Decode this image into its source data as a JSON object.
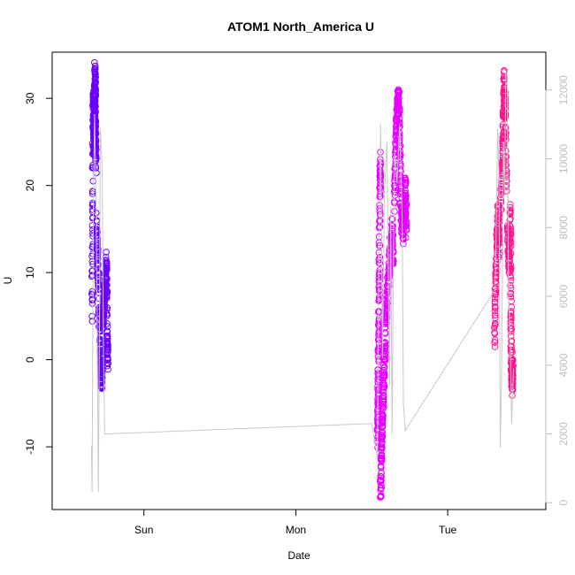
{
  "chart_data": {
    "type": "scatter",
    "title": "ATOM1 North_America U",
    "xlabel": "Date",
    "ylabel": "U",
    "x_axis_type": "time",
    "x_range_hours": [
      -14.5,
      63.5
    ],
    "x_ticks": [
      {
        "label": "Sun",
        "hours": 0
      },
      {
        "label": "Mon",
        "hours": 24
      },
      {
        "label": "Tue",
        "hours": 48
      }
    ],
    "ylim": [
      -17.2,
      35.3
    ],
    "y_ticks": [
      -10,
      0,
      10,
      20,
      30
    ],
    "y2lim": [
      -200,
      13100
    ],
    "y2_ticks": [
      0,
      2000,
      4000,
      6000,
      8000,
      10000,
      12000
    ],
    "grid": false,
    "legend": "none",
    "colors": {
      "group1": "#6b00ff",
      "group2": "#e600ff",
      "group3": "#ff1493",
      "secondary_line": "#c8c8c8",
      "secondary_axis": "#bebebe"
    },
    "series": [
      {
        "color": "#6b00ff",
        "clusters": [
          {
            "x0": -8.3,
            "x1": -7.6,
            "points": [
              [
                -8.2,
                5
              ],
              [
                -8.1,
                18
              ],
              [
                -8.0,
                30
              ],
              [
                -7.9,
                24
              ],
              [
                -7.8,
                28
              ],
              [
                -7.75,
                33
              ],
              [
                -7.7,
                31
              ],
              [
                -7.65,
                26
              ],
              [
                -7.6,
                22
              ]
            ]
          },
          {
            "x0": -7.6,
            "x1": -6.5,
            "points": [
              [
                -7.5,
                16
              ],
              [
                -7.3,
                12
              ],
              [
                -7.1,
                6
              ],
              [
                -6.9,
                2
              ],
              [
                -6.8,
                -1
              ],
              [
                -6.7,
                -2.5
              ],
              [
                -6.6,
                1
              ]
            ]
          },
          {
            "x0": -6.7,
            "x1": -5.6,
            "points": [
              [
                -6.5,
                4
              ],
              [
                -6.3,
                7
              ],
              [
                -6.1,
                9
              ],
              [
                -5.9,
                11
              ],
              [
                -5.8,
                2
              ],
              [
                -5.7,
                0
              ]
            ]
          }
        ]
      },
      {
        "color": "#e600ff",
        "clusters": [
          {
            "x0": 36.8,
            "x1": 37.4,
            "points": [
              [
                36.9,
                -9
              ],
              [
                37.0,
                -4
              ],
              [
                37.1,
                3
              ],
              [
                37.2,
                10
              ],
              [
                37.3,
                19
              ],
              [
                37.35,
                23
              ]
            ]
          },
          {
            "x0": 37.3,
            "x1": 38.2,
            "points": [
              [
                37.4,
                -15
              ],
              [
                37.5,
                -11
              ],
              [
                37.7,
                -7
              ],
              [
                37.9,
                -2
              ],
              [
                38.1,
                2
              ],
              [
                38.2,
                7
              ]
            ]
          },
          {
            "x0": 38.2,
            "x1": 39.5,
            "points": [
              [
                38.3,
                5
              ],
              [
                38.6,
                9
              ],
              [
                38.9,
                12
              ],
              [
                39.2,
                15
              ],
              [
                39.4,
                11
              ]
            ]
          },
          {
            "x0": 39.5,
            "x1": 40.8,
            "points": [
              [
                39.6,
                18
              ],
              [
                39.8,
                24
              ],
              [
                40.0,
                28
              ],
              [
                40.2,
                31
              ],
              [
                40.4,
                26
              ],
              [
                40.6,
                19
              ],
              [
                40.8,
                15
              ]
            ]
          },
          {
            "x0": 40.8,
            "x1": 41.5,
            "points": [
              [
                40.9,
                14
              ],
              [
                41.1,
                17
              ],
              [
                41.3,
                20
              ],
              [
                41.45,
                15
              ]
            ]
          }
        ]
      },
      {
        "color": "#ff1493",
        "clusters": [
          {
            "x0": 55.3,
            "x1": 56.3,
            "points": [
              [
                55.4,
                2
              ],
              [
                55.6,
                9
              ],
              [
                55.8,
                14
              ],
              [
                56.0,
                17
              ],
              [
                56.2,
                12
              ]
            ]
          },
          {
            "x0": 56.3,
            "x1": 57.4,
            "points": [
              [
                56.4,
                18
              ],
              [
                56.6,
                22
              ],
              [
                56.8,
                26
              ],
              [
                56.9,
                32
              ],
              [
                57.1,
                28
              ],
              [
                57.3,
                20
              ]
            ]
          },
          {
            "x0": 57.4,
            "x1": 58.3,
            "points": [
              [
                57.5,
                15
              ],
              [
                57.7,
                10
              ],
              [
                57.9,
                17
              ],
              [
                58.0,
                5
              ],
              [
                58.1,
                -1
              ],
              [
                58.2,
                -3
              ],
              [
                58.3,
                0
              ]
            ]
          }
        ]
      }
    ],
    "secondary_line": {
      "color": "#c8c8c8",
      "axis": "right",
      "points": [
        [
          -8.3,
          1650
        ],
        [
          -8.2,
          300
        ],
        [
          -8.0,
          8500
        ],
        [
          -7.8,
          11300
        ],
        [
          -7.6,
          9000
        ],
        [
          -7.4,
          5500
        ],
        [
          -7.2,
          300
        ],
        [
          -7.0,
          6000
        ],
        [
          -6.9,
          10900
        ],
        [
          -6.6,
          9800
        ],
        [
          -6.4,
          4500
        ],
        [
          -6.2,
          2000
        ],
        [
          -5.8,
          2000
        ],
        [
          36.0,
          2300
        ],
        [
          36.9,
          1300
        ],
        [
          37.1,
          7000
        ],
        [
          37.4,
          11000
        ],
        [
          37.7,
          4200
        ],
        [
          38.0,
          9000
        ],
        [
          38.4,
          10500
        ],
        [
          38.8,
          3400
        ],
        [
          39.0,
          8600
        ],
        [
          39.2,
          2000
        ],
        [
          39.4,
          6700
        ],
        [
          39.6,
          10200
        ],
        [
          40.0,
          9300
        ],
        [
          40.4,
          11000
        ],
        [
          40.8,
          8400
        ],
        [
          41.0,
          2900
        ],
        [
          41.3,
          2100
        ],
        [
          55.5,
          6200
        ],
        [
          55.9,
          10900
        ],
        [
          56.1,
          9500
        ],
        [
          56.3,
          1600
        ],
        [
          56.5,
          3500
        ],
        [
          56.8,
          10500
        ],
        [
          57.0,
          9000
        ],
        [
          57.2,
          12500
        ],
        [
          57.4,
          12500
        ],
        [
          57.6,
          6000
        ],
        [
          57.9,
          4600
        ],
        [
          58.1,
          2300
        ],
        [
          58.4,
          3900
        ]
      ]
    }
  }
}
